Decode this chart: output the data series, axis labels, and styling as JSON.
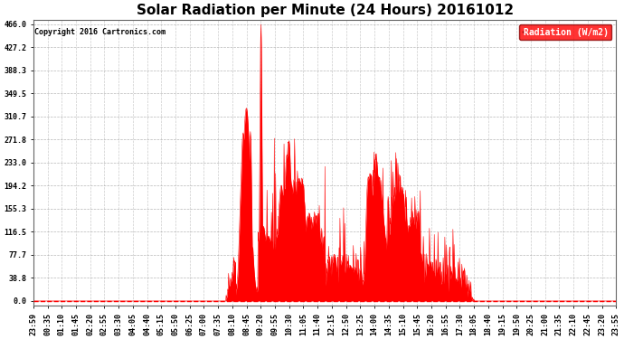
{
  "title": "Solar Radiation per Minute (24 Hours) 20161012",
  "copyright": "Copyright 2016 Cartronics.com",
  "legend_label": "Radiation (W/m2)",
  "yticks": [
    0.0,
    38.8,
    77.7,
    116.5,
    155.3,
    194.2,
    233.0,
    271.8,
    310.7,
    349.5,
    388.3,
    427.2,
    466.0
  ],
  "ymax": 466.0,
  "ymin": 0.0,
  "fill_color": "#ff0000",
  "line_color": "#ff0000",
  "bg_color": "#ffffff",
  "grid_color": "#999999",
  "zero_line_color": "#ff0000",
  "title_fontsize": 11,
  "tick_fontsize": 6,
  "xtick_labels": [
    "23:59",
    "00:35",
    "01:10",
    "01:45",
    "02:20",
    "02:55",
    "03:30",
    "04:05",
    "04:40",
    "05:15",
    "05:50",
    "06:25",
    "07:00",
    "07:35",
    "08:10",
    "08:45",
    "09:20",
    "09:55",
    "10:30",
    "11:05",
    "11:40",
    "12:15",
    "12:50",
    "13:25",
    "14:00",
    "14:35",
    "15:10",
    "15:45",
    "16:20",
    "16:55",
    "17:30",
    "18:05",
    "18:40",
    "19:15",
    "19:50",
    "20:25",
    "21:00",
    "21:35",
    "22:10",
    "22:45",
    "23:20",
    "23:55"
  ]
}
